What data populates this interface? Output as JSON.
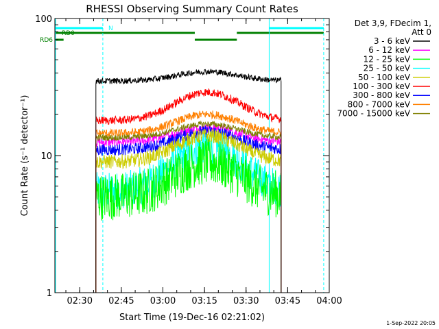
{
  "chart_data": {
    "type": "line",
    "title": "RHESSI Observing Summary Count Rates",
    "xlabel": "Start Time (19-Dec-16 02:21:02)",
    "ylabel": "Count Rate (s⁻¹ detector⁻¹)",
    "yscale": "log",
    "ylim": [
      1,
      100
    ],
    "xlim": [
      "02:21:02",
      "04:00:00"
    ],
    "x_ticks": [
      "02:30",
      "02:45",
      "03:00",
      "03:15",
      "03:30",
      "03:45",
      "04:00"
    ],
    "y_ticks": [
      "1",
      "10",
      "100"
    ],
    "legend_position": "right",
    "legend_header": [
      "Det 3,9, FDecim 1,",
      "Att 0"
    ],
    "footer": "1-Sep-2022 20:05",
    "data_window": [
      "02:35:50",
      "03:42:40"
    ],
    "status_bars": [
      {
        "label": "N",
        "color": "#00ffff",
        "segments": [
          [
            "02:21:02",
            "02:38:20"
          ],
          [
            "03:38:20",
            "03:58:00"
          ]
        ]
      },
      {
        "label": "RD0",
        "color": "#008000",
        "segments": [
          [
            "02:21:02",
            "03:11:30"
          ],
          [
            "03:26:40",
            "03:58:00"
          ]
        ]
      },
      {
        "label": "RD6",
        "color": "#008000",
        "segments": [
          [
            "02:21:02",
            "02:24:10"
          ],
          [
            "03:11:30",
            "03:26:40"
          ]
        ]
      }
    ],
    "event_lines": [
      {
        "time": "02:38:20",
        "style": "dashed",
        "color": "#00ffff"
      },
      {
        "time": "03:38:20",
        "style": "solid",
        "color": "#00ffff"
      },
      {
        "time": "03:58:00",
        "style": "dashed",
        "color": "#00ffff"
      }
    ],
    "series": [
      {
        "name": "3 - 6 keV",
        "color": "#000000",
        "baseline": 35,
        "peak": 41,
        "noise": 0.05
      },
      {
        "name": "6 - 12 keV",
        "color": "#ff00ff",
        "baseline": 12.5,
        "peak": 16,
        "noise": 0.08
      },
      {
        "name": "12 - 25 keV",
        "color": "#00ff00",
        "baseline": 5,
        "peak": 9,
        "noise": 0.25
      },
      {
        "name": "25 - 50 keV",
        "color": "#00ffff",
        "baseline": 5.5,
        "peak": 12,
        "noise": 0.2
      },
      {
        "name": "50 - 100 keV",
        "color": "#cccc00",
        "baseline": 9,
        "peak": 14,
        "noise": 0.12
      },
      {
        "name": "100 - 300 keV",
        "color": "#ff0000",
        "baseline": 18,
        "peak": 29,
        "noise": 0.07
      },
      {
        "name": "300 - 800 keV",
        "color": "#0000ff",
        "baseline": 11,
        "peak": 15,
        "noise": 0.1
      },
      {
        "name": "800 - 7000 keV",
        "color": "#ff8000",
        "baseline": 14.5,
        "peak": 20,
        "noise": 0.07
      },
      {
        "name": "7000 - 15000 keV",
        "color": "#808000",
        "baseline": 13.5,
        "peak": 17,
        "noise": 0.05
      }
    ]
  }
}
